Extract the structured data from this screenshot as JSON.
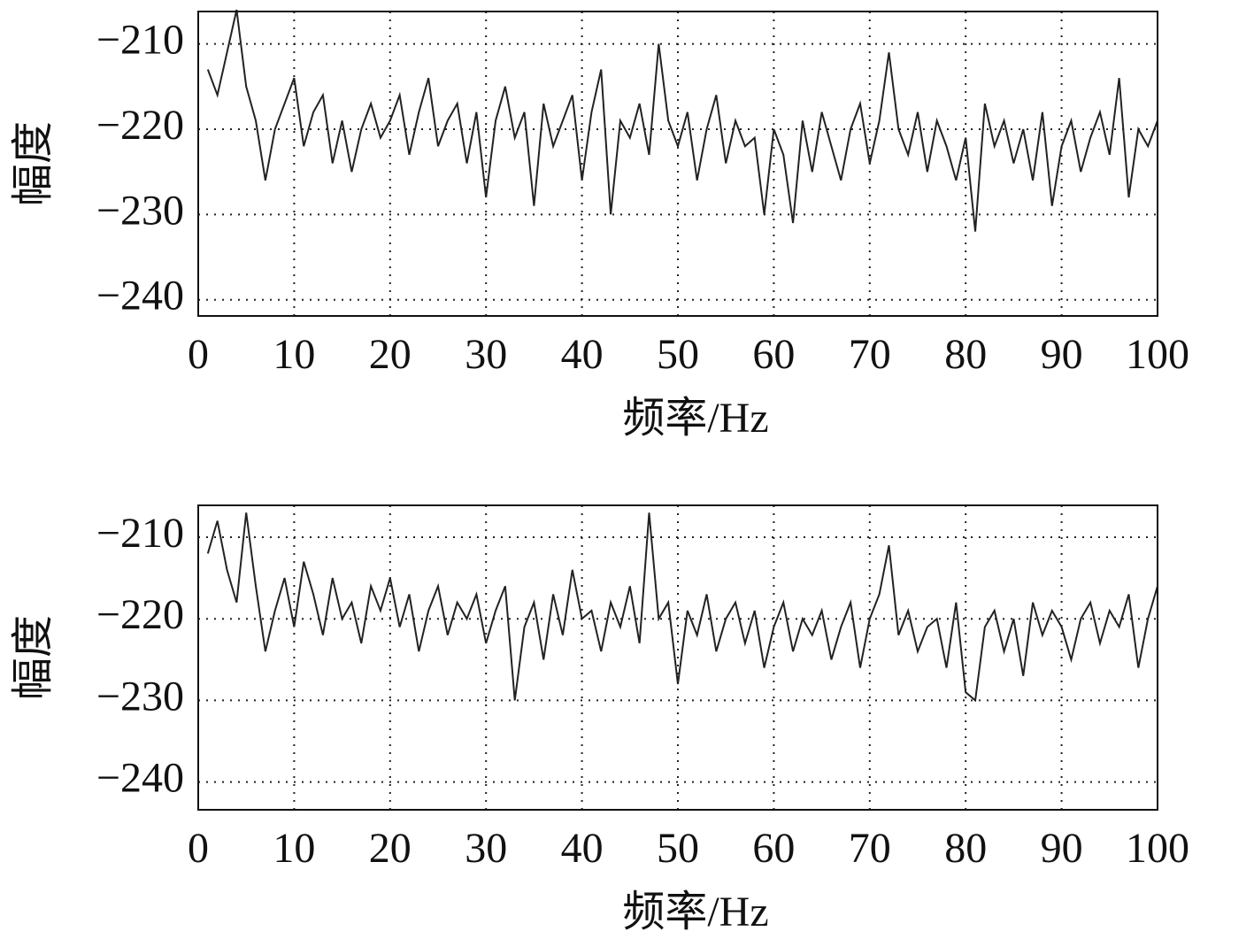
{
  "chart_data": [
    {
      "type": "line",
      "xlabel": "频率/Hz",
      "ylabel": "幅度",
      "color": "#222222",
      "grid": true,
      "x": [
        1,
        2,
        3,
        4,
        5,
        6,
        7,
        8,
        9,
        10,
        11,
        12,
        13,
        14,
        15,
        16,
        17,
        18,
        19,
        20,
        21,
        22,
        23,
        24,
        25,
        26,
        27,
        28,
        29,
        30,
        31,
        32,
        33,
        34,
        35,
        36,
        37,
        38,
        39,
        40,
        41,
        42,
        43,
        44,
        45,
        46,
        47,
        48,
        49,
        50,
        51,
        52,
        53,
        54,
        55,
        56,
        57,
        58,
        59,
        60,
        61,
        62,
        63,
        64,
        65,
        66,
        67,
        68,
        69,
        70,
        71,
        72,
        73,
        74,
        75,
        76,
        77,
        78,
        79,
        80,
        81,
        82,
        83,
        84,
        85,
        86,
        87,
        88,
        89,
        90,
        91,
        92,
        93,
        94,
        95,
        96,
        97,
        98,
        99,
        100
      ],
      "values": [
        -213,
        -216,
        -211,
        -206,
        -215,
        -219,
        -226,
        -220,
        -217,
        -214,
        -222,
        -218,
        -216,
        -224,
        -219,
        -225,
        -220,
        -217,
        -221,
        -219,
        -216,
        -223,
        -218,
        -214,
        -222,
        -219,
        -217,
        -224,
        -218,
        -228,
        -219,
        -215,
        -221,
        -218,
        -229,
        -217,
        -222,
        -219,
        -216,
        -226,
        -218,
        -213,
        -230,
        -219,
        -221,
        -217,
        -223,
        -210,
        -219,
        -222,
        -218,
        -226,
        -220,
        -216,
        -224,
        -219,
        -222,
        -221,
        -230,
        -220,
        -223,
        -231,
        -219,
        -225,
        -218,
        -222,
        -226,
        -220,
        -217,
        -224,
        -219,
        -211,
        -220,
        -223,
        -218,
        -225,
        -219,
        -222,
        -226,
        -221,
        -232,
        -217,
        -222,
        -219,
        -224,
        -220,
        -226,
        -218,
        -229,
        -222,
        -219,
        -225,
        -221,
        -218,
        -223,
        -214,
        -228,
        -220,
        -222,
        -219
      ],
      "xlim": [
        0,
        100
      ],
      "xticks": [
        0,
        10,
        20,
        30,
        40,
        50,
        60,
        70,
        80,
        90,
        100
      ],
      "ylim": [
        -241.9,
        -206.2
      ],
      "yticks": [
        {
          "value": -240,
          "label": "−240"
        },
        {
          "value": -230,
          "label": "−230"
        },
        {
          "value": -220,
          "label": "−220"
        },
        {
          "value": -210,
          "label": "−210"
        }
      ]
    },
    {
      "type": "line",
      "xlabel": "频率/Hz",
      "ylabel": "幅度",
      "color": "#222222",
      "grid": true,
      "x": [
        1,
        2,
        3,
        4,
        5,
        6,
        7,
        8,
        9,
        10,
        11,
        12,
        13,
        14,
        15,
        16,
        17,
        18,
        19,
        20,
        21,
        22,
        23,
        24,
        25,
        26,
        27,
        28,
        29,
        30,
        31,
        32,
        33,
        34,
        35,
        36,
        37,
        38,
        39,
        40,
        41,
        42,
        43,
        44,
        45,
        46,
        47,
        48,
        49,
        50,
        51,
        52,
        53,
        54,
        55,
        56,
        57,
        58,
        59,
        60,
        61,
        62,
        63,
        64,
        65,
        66,
        67,
        68,
        69,
        70,
        71,
        72,
        73,
        74,
        75,
        76,
        77,
        78,
        79,
        80,
        81,
        82,
        83,
        84,
        85,
        86,
        87,
        88,
        89,
        90,
        91,
        92,
        93,
        94,
        95,
        96,
        97,
        98,
        99,
        100
      ],
      "values": [
        -212,
        -208,
        -214,
        -218,
        -207,
        -216,
        -224,
        -219,
        -215,
        -221,
        -213,
        -217,
        -222,
        -215,
        -220,
        -218,
        -223,
        -216,
        -219,
        -215,
        -221,
        -217,
        -224,
        -219,
        -216,
        -222,
        -218,
        -220,
        -217,
        -223,
        -219,
        -216,
        -230,
        -221,
        -218,
        -225,
        -217,
        -222,
        -214,
        -220,
        -219,
        -224,
        -218,
        -221,
        -216,
        -223,
        -207,
        -220,
        -218,
        -228,
        -219,
        -222,
        -217,
        -224,
        -220,
        -218,
        -223,
        -219,
        -226,
        -221,
        -218,
        -224,
        -220,
        -222,
        -219,
        -225,
        -221,
        -218,
        -226,
        -220,
        -217,
        -211,
        -222,
        -219,
        -224,
        -221,
        -220,
        -226,
        -218,
        -229,
        -230,
        -221,
        -219,
        -224,
        -220,
        -227,
        -218,
        -222,
        -219,
        -221,
        -225,
        -220,
        -218,
        -223,
        -219,
        -221,
        -217,
        -226,
        -220,
        -216
      ],
      "xlim": [
        0,
        100
      ],
      "xticks": [
        0,
        10,
        20,
        30,
        40,
        50,
        60,
        70,
        80,
        90,
        100
      ],
      "ylim": [
        -243.4,
        -206.1
      ],
      "yticks": [
        {
          "value": -240,
          "label": "−240"
        },
        {
          "value": -230,
          "label": "−230"
        },
        {
          "value": -220,
          "label": "−220"
        },
        {
          "value": -210,
          "label": "−210"
        }
      ]
    }
  ]
}
